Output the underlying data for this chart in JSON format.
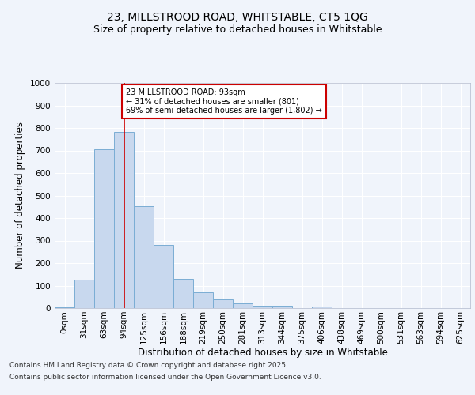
{
  "title_line1": "23, MILLSTROOD ROAD, WHITSTABLE, CT5 1QG",
  "title_line2": "Size of property relative to detached houses in Whitstable",
  "xlabel": "Distribution of detached houses by size in Whitstable",
  "ylabel": "Number of detached properties",
  "bar_color": "#c8d8ee",
  "bar_edge_color": "#7aadd4",
  "categories": [
    "0sqm",
    "31sqm",
    "63sqm",
    "94sqm",
    "125sqm",
    "156sqm",
    "188sqm",
    "219sqm",
    "250sqm",
    "281sqm",
    "313sqm",
    "344sqm",
    "375sqm",
    "406sqm",
    "438sqm",
    "469sqm",
    "500sqm",
    "531sqm",
    "563sqm",
    "594sqm",
    "625sqm"
  ],
  "values": [
    5,
    128,
    706,
    784,
    452,
    279,
    131,
    70,
    40,
    22,
    12,
    10,
    0,
    8,
    0,
    0,
    0,
    0,
    0,
    0,
    0
  ],
  "ylim": [
    0,
    1000
  ],
  "yticks": [
    0,
    100,
    200,
    300,
    400,
    500,
    600,
    700,
    800,
    900,
    1000
  ],
  "property_bin_index": 3,
  "annotation_text": "23 MILLSTROOD ROAD: 93sqm\n← 31% of detached houses are smaller (801)\n69% of semi-detached houses are larger (1,802) →",
  "annotation_box_color": "#ffffff",
  "annotation_box_edge_color": "#cc0000",
  "bg_color": "#f0f4fb",
  "grid_color": "#ffffff",
  "footer_line1": "Contains HM Land Registry data © Crown copyright and database right 2025.",
  "footer_line2": "Contains public sector information licensed under the Open Government Licence v3.0.",
  "title_fontsize": 10,
  "subtitle_fontsize": 9,
  "tick_fontsize": 7.5,
  "label_fontsize": 8.5,
  "footer_fontsize": 6.5
}
